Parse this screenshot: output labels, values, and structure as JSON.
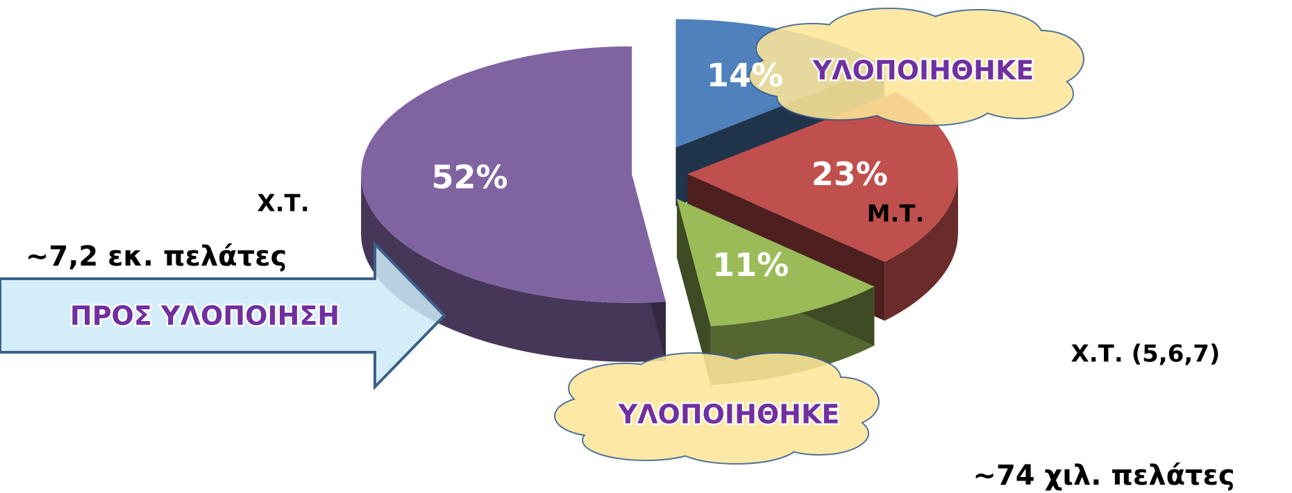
{
  "chart_data": {
    "type": "pie",
    "categories": [
      null,
      "Μ.Τ.",
      "Χ.Τ. (5,6,7)",
      "Χ.Τ."
    ],
    "values": [
      14,
      23,
      11,
      52
    ],
    "value_labels": [
      "14%",
      "23%",
      "11%",
      "52%"
    ],
    "colors": [
      "#4f81bd",
      "#c0504d",
      "#9bbb59",
      "#8064a2"
    ],
    "annotations": [
      "~7,2 εκ. πελάτες",
      "ΠΡΟΣ ΥΛΟΠΟΙΗΣΗ",
      "ΥΛΟΠΟΙΗΘΗΚΕ",
      "ΥΛΟΠΟΙΗΘΗΚΕ",
      "~74 χιλ. πελάτες"
    ]
  }
}
